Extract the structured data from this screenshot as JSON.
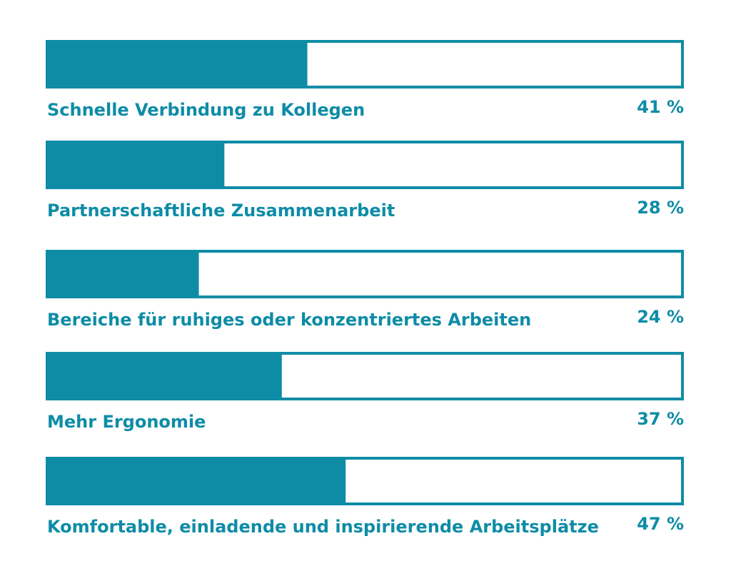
{
  "chart_data": {
    "type": "bar",
    "orientation": "horizontal",
    "categories": [
      "Schnelle Verbindung zu Kollegen",
      "Partnerschaftliche Zusammenarbeit",
      "Bereiche für ruhiges oder konzentriertes Arbeiten",
      "Mehr Ergonomie",
      "Komfortable, einladende und inspirierende Arbeitsplätze"
    ],
    "values": [
      41,
      28,
      24,
      37,
      47
    ],
    "value_labels": [
      "41 %",
      "28 %",
      "24 %",
      "37 %",
      "47 %"
    ],
    "xlim": [
      0,
      100
    ],
    "unit": "%",
    "grid": false,
    "legend": "none",
    "colors": {
      "fill": "#0e8ca6",
      "outline": "#0e8ca6",
      "text": "#0e8ca6",
      "track": "#ffffff"
    }
  }
}
